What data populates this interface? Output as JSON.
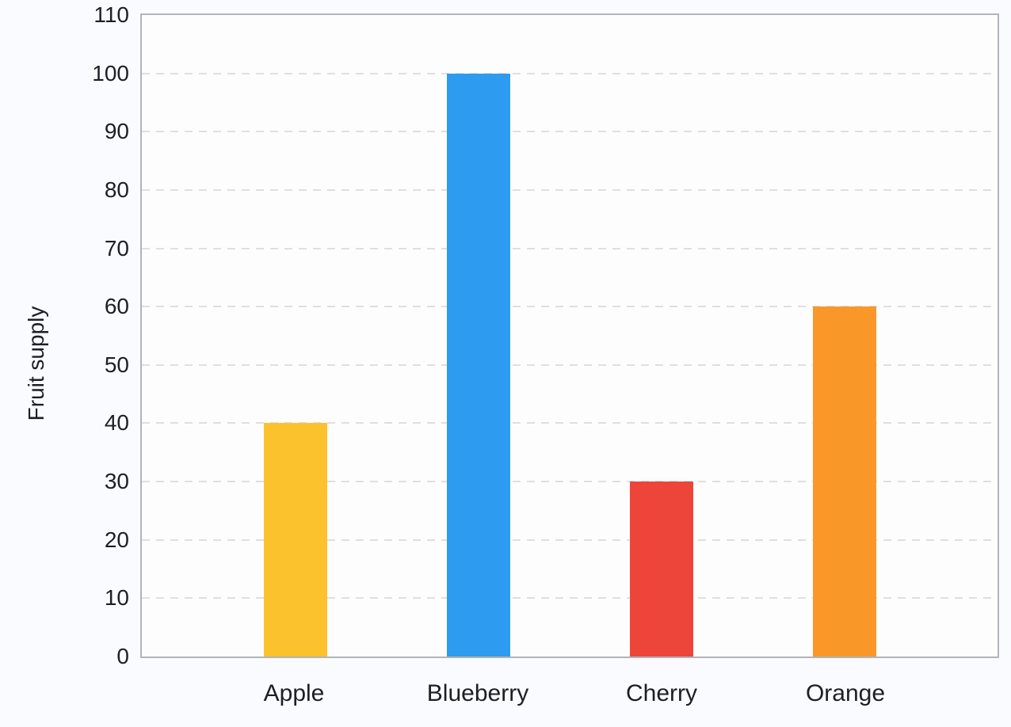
{
  "chart_data": {
    "type": "bar",
    "categories": [
      "Apple",
      "Blueberry",
      "Cherry",
      "Orange"
    ],
    "values": [
      40,
      100,
      30,
      60
    ],
    "bar_colors": [
      "#fcc22e",
      "#2d9bef",
      "#ee453b",
      "#f99829"
    ],
    "title": "",
    "xlabel": "",
    "ylabel": "Fruit supply",
    "ylim": [
      0,
      110
    ],
    "yticks": [
      0,
      10,
      20,
      30,
      40,
      50,
      60,
      70,
      80,
      90,
      100,
      110
    ],
    "grid": "horizontal-dashed",
    "legend": "none"
  },
  "colors": {
    "page_bg": "#fafbfe",
    "plot_bg": "#fdfdfe",
    "axis_border": "#b3b3b8",
    "gridline": "#dfdfe3",
    "text": "#1e1e23"
  }
}
